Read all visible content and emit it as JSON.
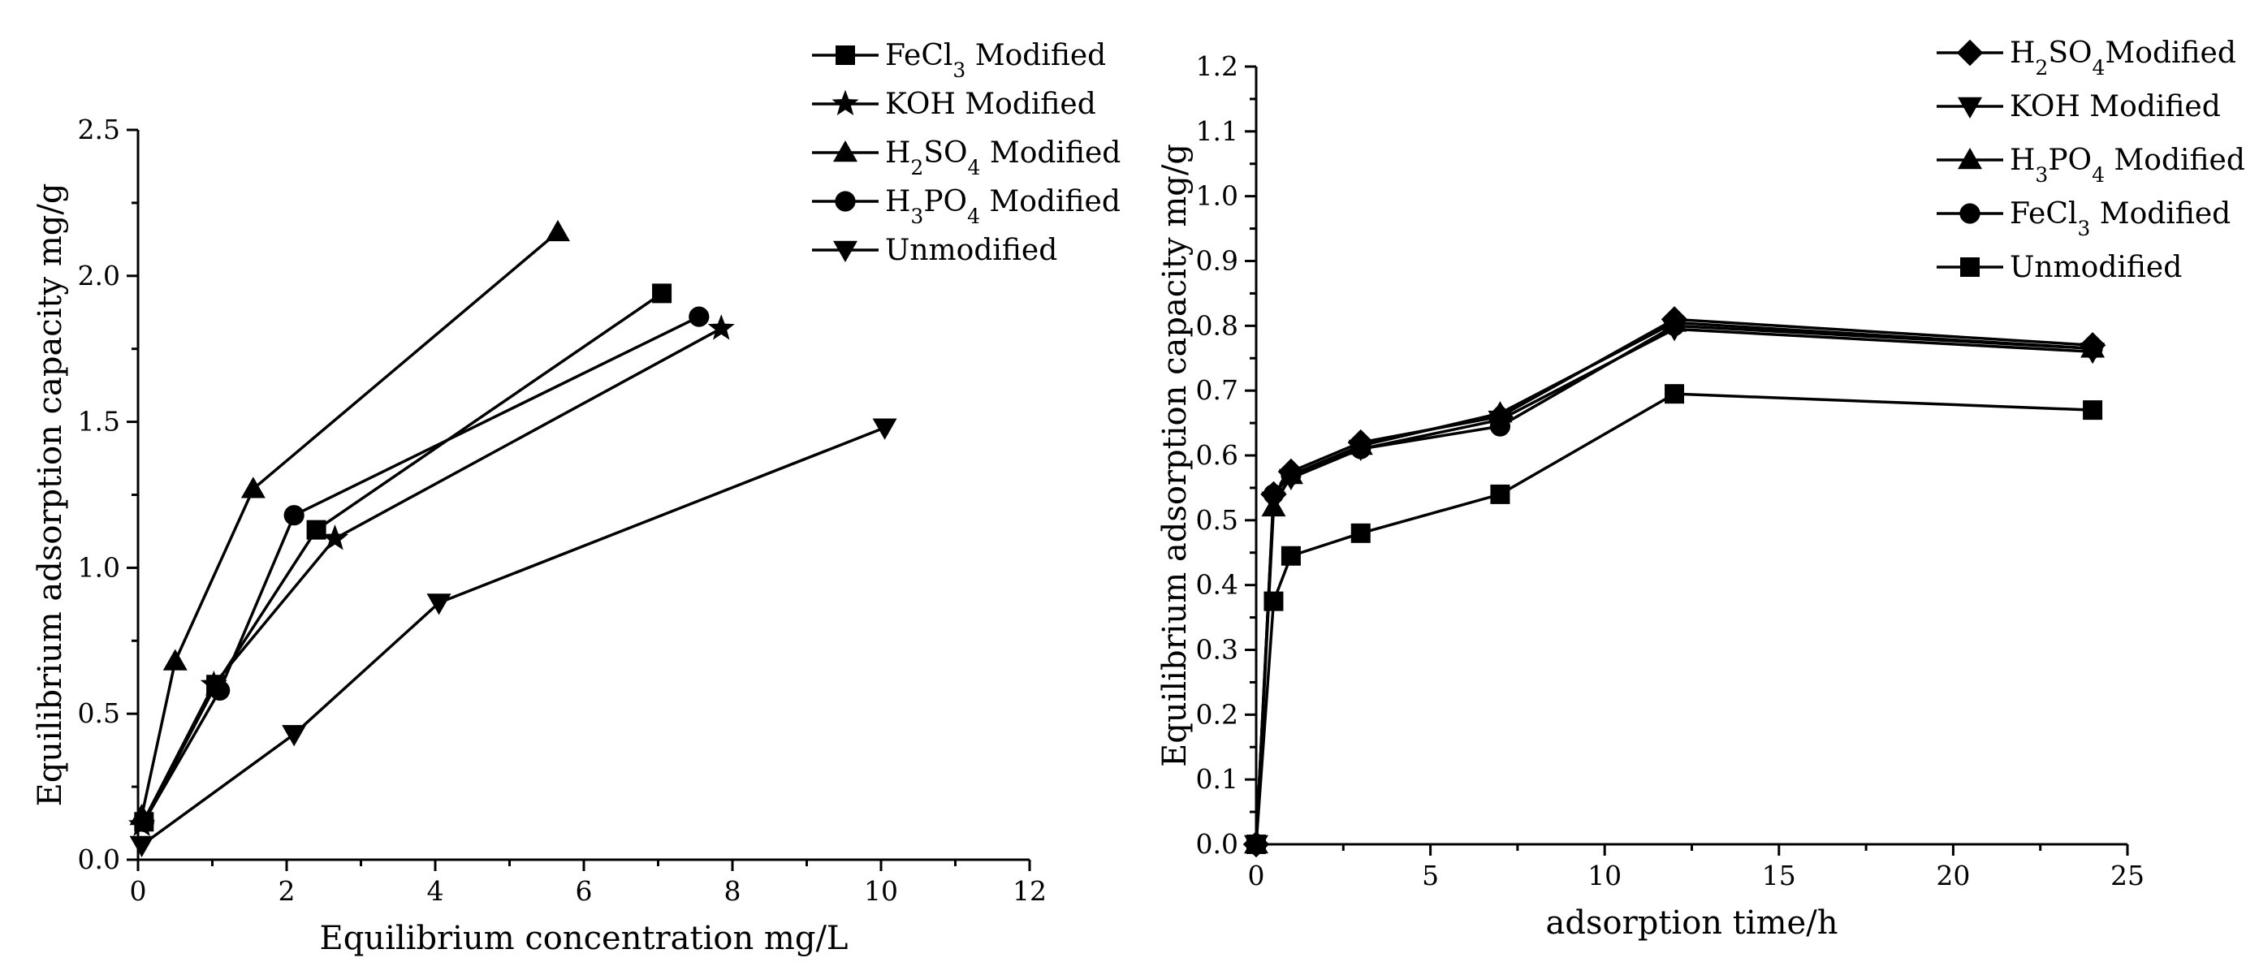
{
  "chart_data": [
    {
      "type": "line",
      "xlabel": "Equilibrium concentration mg/L",
      "ylabel": "Equilibrium adsorption capacity mg/g",
      "xlim": [
        0,
        12
      ],
      "ylim": [
        0,
        2.5
      ],
      "x_ticks": [
        0,
        2,
        4,
        6,
        8,
        10,
        12
      ],
      "x_tick_labels": [
        "0",
        "2",
        "4",
        "6",
        "8",
        "10",
        "12"
      ],
      "y_ticks": [
        0,
        0.5,
        1.0,
        1.5,
        2.0,
        2.5
      ],
      "y_tick_labels": [
        "0.0",
        "0.5",
        "1.0",
        "1.5",
        "2.0",
        "2.5"
      ],
      "legend_position": "top-right",
      "grid": false,
      "series": [
        {
          "name": "FeCl₃ Modified",
          "label_main": "FeCl",
          "label_sub": "3",
          "label_rest": " Modified",
          "marker": "square",
          "points": [
            [
              0.08,
              0.13
            ],
            [
              1.05,
              0.6
            ],
            [
              2.4,
              1.13
            ],
            [
              7.05,
              1.94
            ]
          ]
        },
        {
          "name": "KOH Modified",
          "label_main": "KOH  Modified",
          "label_sub": "",
          "label_rest": "",
          "marker": "star",
          "points": [
            [
              0.05,
              0.12
            ],
            [
              1.02,
              0.6
            ],
            [
              2.65,
              1.1
            ],
            [
              7.85,
              1.82
            ]
          ]
        },
        {
          "name": "H₂SO₄ Modified",
          "label_main": "H",
          "label_sub": "2",
          "label_rest": "SO",
          "label_sub2": "4",
          "label_tail": " Modified",
          "marker": "triangle-up",
          "points": [
            [
              0.05,
              0.15
            ],
            [
              0.5,
              0.68
            ],
            [
              1.55,
              1.27
            ],
            [
              5.65,
              2.15
            ]
          ]
        },
        {
          "name": "H₃PO₄ Modified",
          "label_main": "H",
          "label_sub": "3",
          "label_rest": "PO",
          "label_sub2": "4",
          "label_tail": " Modified",
          "marker": "circle",
          "points": [
            [
              0.08,
              0.13
            ],
            [
              1.1,
              0.58
            ],
            [
              2.1,
              1.18
            ],
            [
              7.55,
              1.86
            ]
          ]
        },
        {
          "name": "Unmodified",
          "label_main": "Unmodified",
          "label_sub": "",
          "label_rest": "",
          "marker": "triangle-down",
          "points": [
            [
              0.05,
              0.05
            ],
            [
              2.1,
              0.43
            ],
            [
              4.05,
              0.88
            ],
            [
              10.05,
              1.48
            ]
          ]
        }
      ]
    },
    {
      "type": "line",
      "xlabel": "adsorption time/h",
      "ylabel": "Equilibrium adsorption capacity mg/g",
      "xlim": [
        0,
        25
      ],
      "ylim": [
        0,
        1.2
      ],
      "x_ticks": [
        0,
        5,
        10,
        15,
        20,
        25
      ],
      "x_tick_labels": [
        "0",
        "5",
        "10",
        "15",
        "20",
        "25"
      ],
      "y_ticks": [
        0,
        0.1,
        0.2,
        0.3,
        0.4,
        0.5,
        0.6,
        0.7,
        0.8,
        0.9,
        1.0,
        1.1,
        1.2
      ],
      "y_tick_labels": [
        "0.0",
        "0.1",
        "0.2",
        "0.3",
        "0.4",
        "0.5",
        "0.6",
        "0.7",
        "0.8",
        "0.9",
        "1.0",
        "1.1",
        "1.2"
      ],
      "legend_position": "top-right",
      "grid": false,
      "series": [
        {
          "name": "H₂SO₄Modified",
          "label_main": "H",
          "label_sub": "2",
          "label_rest": "SO",
          "label_sub2": "4",
          "label_tail": "Modified",
          "marker": "diamond",
          "points": [
            [
              0,
              0
            ],
            [
              0.5,
              0.54
            ],
            [
              1,
              0.575
            ],
            [
              3,
              0.62
            ],
            [
              7,
              0.66
            ],
            [
              12,
              0.81
            ],
            [
              24,
              0.77
            ]
          ]
        },
        {
          "name": "KOH Modified",
          "label_main": "KOH Modified",
          "label_sub": "",
          "label_rest": "",
          "marker": "triangle-down",
          "points": [
            [
              0,
              0
            ],
            [
              0.5,
              0.53
            ],
            [
              1,
              0.565
            ],
            [
              3,
              0.61
            ],
            [
              7,
              0.655
            ],
            [
              12,
              0.795
            ],
            [
              24,
              0.76
            ]
          ]
        },
        {
          "name": "H₃PO₄ Modified",
          "label_main": "H",
          "label_sub": "3",
          "label_rest": "PO",
          "label_sub2": "4",
          "label_tail": " Modified",
          "marker": "triangle-up",
          "points": [
            [
              0,
              0
            ],
            [
              0.5,
              0.52
            ],
            [
              1,
              0.57
            ],
            [
              3,
              0.615
            ],
            [
              7,
              0.665
            ],
            [
              12,
              0.805
            ],
            [
              24,
              0.765
            ]
          ]
        },
        {
          "name": "FeCl₃ Modified",
          "label_main": "FeCl",
          "label_sub": "3",
          "label_rest": " Modified",
          "marker": "circle",
          "points": [
            [
              0,
              0
            ],
            [
              0.5,
              0.54
            ],
            [
              1,
              0.57
            ],
            [
              3,
              0.61
            ],
            [
              7,
              0.645
            ],
            [
              12,
              0.8
            ],
            [
              24,
              0.765
            ]
          ]
        },
        {
          "name": "Unmodified",
          "label_main": "Unmodified",
          "label_sub": "",
          "label_rest": "",
          "marker": "square",
          "points": [
            [
              0,
              0
            ],
            [
              0.5,
              0.375
            ],
            [
              1,
              0.445
            ],
            [
              3,
              0.48
            ],
            [
              7,
              0.54
            ],
            [
              12,
              0.695
            ],
            [
              24,
              0.67
            ]
          ]
        }
      ]
    }
  ]
}
